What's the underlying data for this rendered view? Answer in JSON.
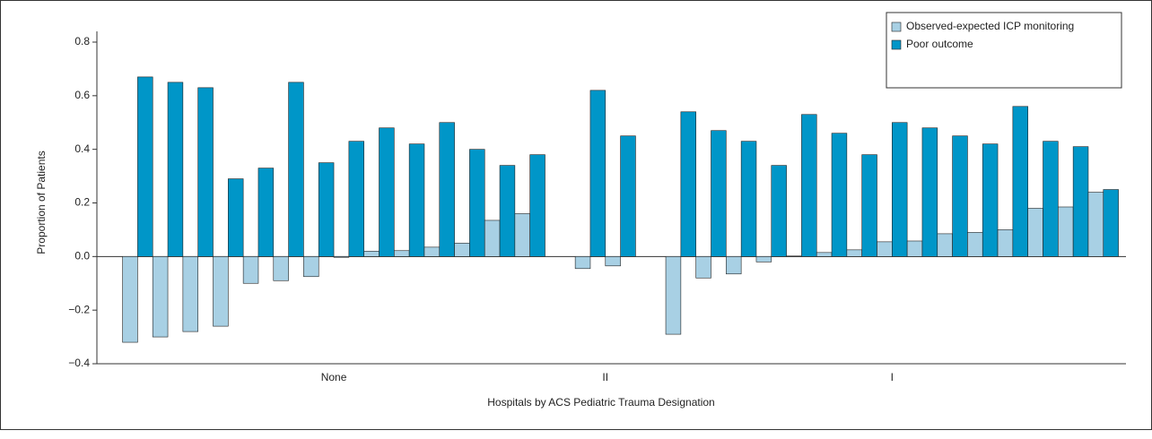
{
  "chart_data": {
    "type": "bar",
    "ylabel": "Proportion of Patients",
    "xlabel": "Hospitals by ACS Pediatric Trauma Designation",
    "ylim": [
      -0.4,
      0.8
    ],
    "yticks": [
      {
        "value": -0.4,
        "label": "−0.4"
      },
      {
        "value": -0.2,
        "label": "−0.2"
      },
      {
        "value": 0,
        "label": "0.0"
      },
      0.2,
      0.4,
      0.6,
      0.8
    ],
    "legend": "upper right",
    "series": [
      {
        "name": "Observed-expected ICP monitoring",
        "color": "#a8d0e4"
      },
      {
        "name": "Poor outcome",
        "color": "#0096c8"
      }
    ],
    "groups": [
      {
        "label": "None",
        "values": [
          [
            -0.32,
            -0.3,
            -0.28,
            -0.26,
            -0.1,
            -0.09,
            -0.075,
            -0.003,
            0.02,
            0.022,
            0.035,
            0.05,
            0.135,
            0.16
          ],
          [
            0.67,
            0.65,
            0.63,
            0.29,
            0.33,
            0.65,
            0.35,
            0.43,
            0.48,
            0.42,
            0.5,
            0.4,
            0.34,
            0.38
          ]
        ]
      },
      {
        "label": "II",
        "values": [
          [
            -0.045,
            -0.035
          ],
          [
            0.62,
            0.45
          ]
        ]
      },
      {
        "label": "I",
        "values": [
          [
            -0.29,
            -0.08,
            -0.065,
            -0.02,
            0.002,
            0.015,
            0.025,
            0.055,
            0.058,
            0.085,
            0.09,
            0.1,
            0.18,
            0.185,
            0.24
          ],
          [
            0.54,
            0.47,
            0.43,
            0.34,
            0.53,
            0.46,
            0.38,
            0.5,
            0.48,
            0.45,
            0.42,
            0.56,
            0.43,
            0.41,
            0.25
          ]
        ]
      }
    ]
  }
}
